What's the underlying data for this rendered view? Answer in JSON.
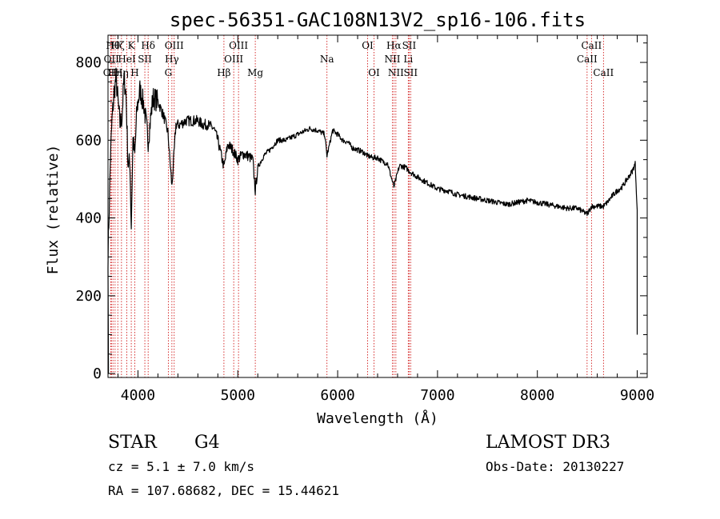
{
  "chart_data": {
    "type": "line",
    "title": "spec-56351-GAC108N13V2_sp16-106.fits",
    "xlabel": "Wavelength (Å)",
    "ylabel": "Flux (relative)",
    "xlim": [
      3700,
      9100
    ],
    "ylim": [
      -10,
      870
    ],
    "x_ticks": [
      4000,
      5000,
      6000,
      7000,
      8000,
      9000
    ],
    "y_ticks": [
      0,
      200,
      400,
      600,
      800
    ],
    "grid": false,
    "series": [
      {
        "name": "Flux",
        "x": [
          3700,
          3725,
          3740,
          3760,
          3780,
          3800,
          3820,
          3840,
          3860,
          3880,
          3900,
          3920,
          3933,
          3950,
          3968,
          3990,
          4020,
          4060,
          4102,
          4150,
          4200,
          4260,
          4300,
          4340,
          4380,
          4420,
          4480,
          4540,
          4600,
          4650,
          4700,
          4760,
          4800,
          4861,
          4900,
          4950,
          5000,
          5050,
          5100,
          5150,
          5175,
          5200,
          5260,
          5320,
          5400,
          5480,
          5560,
          5640,
          5720,
          5800,
          5870,
          5893,
          5950,
          6000,
          6050,
          6100,
          6150,
          6200,
          6250,
          6300,
          6350,
          6400,
          6450,
          6500,
          6563,
          6620,
          6680,
          6720,
          6800,
          6900,
          7000,
          7100,
          7200,
          7300,
          7400,
          7500,
          7600,
          7700,
          7800,
          7900,
          8000,
          8100,
          8200,
          8300,
          8400,
          8498,
          8542,
          8600,
          8662,
          8700,
          8760,
          8800,
          8850,
          8900,
          8950,
          8980,
          9000
        ],
        "y": [
          300,
          560,
          650,
          720,
          760,
          700,
          640,
          660,
          760,
          720,
          540,
          540,
          380,
          600,
          560,
          680,
          730,
          690,
          600,
          710,
          700,
          660,
          620,
          480,
          640,
          640,
          650,
          650,
          650,
          640,
          640,
          630,
          600,
          530,
          590,
          575,
          550,
          565,
          560,
          550,
          470,
          530,
          560,
          575,
          600,
          600,
          610,
          620,
          630,
          625,
          615,
          560,
          625,
          615,
          600,
          595,
          580,
          575,
          570,
          560,
          555,
          555,
          545,
          540,
          480,
          535,
          530,
          520,
          505,
          490,
          475,
          470,
          460,
          455,
          450,
          445,
          440,
          435,
          440,
          445,
          440,
          435,
          430,
          425,
          425,
          410,
          430,
          430,
          430,
          440,
          460,
          470,
          480,
          500,
          520,
          540,
          420
        ]
      }
    ],
    "lines": [
      {
        "x": 3727,
        "label": "OII",
        "row": 3
      },
      {
        "x": 3734,
        "label": "OII",
        "row": 2
      },
      {
        "x": 3750,
        "label": "Hθ",
        "row": 1
      },
      {
        "x": 3771,
        "label": "Hη",
        "row": 3
      },
      {
        "x": 3798,
        "label": "Hζ",
        "row": 1
      },
      {
        "x": 3835,
        "label": "Hη",
        "row": 3
      },
      {
        "x": 3889,
        "label": "HeI",
        "row": 2
      },
      {
        "x": 3933,
        "label": "K",
        "row": 1
      },
      {
        "x": 3968,
        "label": "H",
        "row": 3
      },
      {
        "x": 4069,
        "label": "SII",
        "row": 2
      },
      {
        "x": 4102,
        "label": "Hδ",
        "row": 1
      },
      {
        "x": 4304,
        "label": "G",
        "row": 3
      },
      {
        "x": 4340,
        "label": "Hγ",
        "row": 2
      },
      {
        "x": 4363,
        "label": "OIII",
        "row": 1
      },
      {
        "x": 4861,
        "label": "Hβ",
        "row": 3
      },
      {
        "x": 4959,
        "label": "OIII",
        "row": 2
      },
      {
        "x": 5007,
        "label": "OIII",
        "row": 1
      },
      {
        "x": 5175,
        "label": "Mg",
        "row": 3
      },
      {
        "x": 5893,
        "label": "Na",
        "row": 2
      },
      {
        "x": 6300,
        "label": "OI",
        "row": 1
      },
      {
        "x": 6364,
        "label": "OI",
        "row": 3
      },
      {
        "x": 6548,
        "label": "NII",
        "row": 2
      },
      {
        "x": 6563,
        "label": "Hα",
        "row": 1
      },
      {
        "x": 6583,
        "label": "NII",
        "row": 3
      },
      {
        "x": 6707,
        "label": "Li",
        "row": 2
      },
      {
        "x": 6716,
        "label": "SII",
        "row": 1
      },
      {
        "x": 6731,
        "label": "SII",
        "row": 3
      },
      {
        "x": 8498,
        "label": "CaII",
        "row": 2
      },
      {
        "x": 8542,
        "label": "CaII",
        "row": 1
      },
      {
        "x": 8662,
        "label": "CaII",
        "row": 3
      }
    ]
  },
  "info": {
    "class": "STAR",
    "subclass": "G4",
    "survey": "LAMOST DR3",
    "cz": "cz = 5.1 ± 7.0 km/s",
    "obs_date": "Obs-Date: 20130227",
    "radec": "RA = 107.68682, DEC =  15.44621"
  },
  "colors": {
    "spectrum": "#000000",
    "line_marker": "#cc0000",
    "axis": "#000000"
  }
}
